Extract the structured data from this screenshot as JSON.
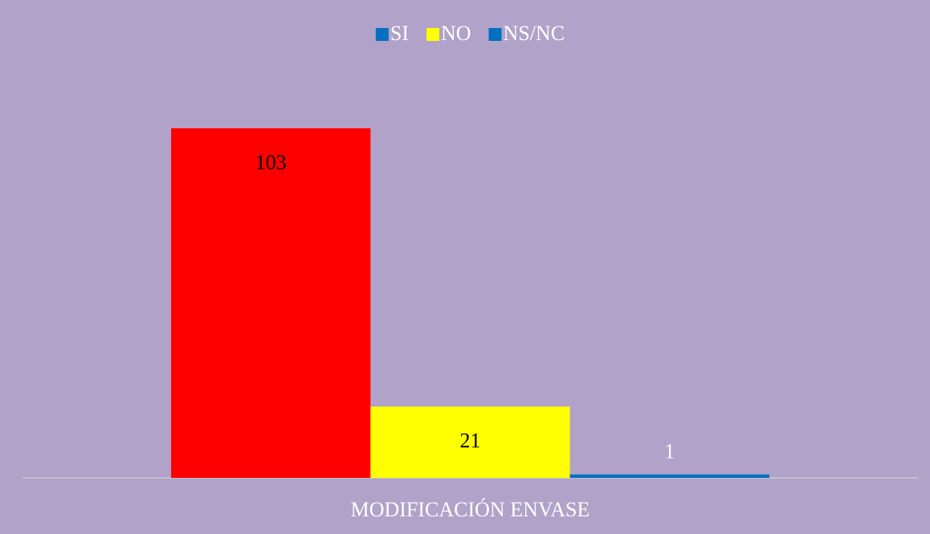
{
  "chart_data": {
    "type": "bar",
    "categories": [
      "MODIFICACIÓN ENVASE"
    ],
    "series": [
      {
        "name": "SI",
        "color": "#ff0000",
        "legend_color": "#0070c0",
        "values": [
          103
        ]
      },
      {
        "name": "NO",
        "color": "#ffff00",
        "legend_color": "#ffff00",
        "values": [
          21
        ]
      },
      {
        "name": "NS/NC",
        "color": "#0070c0",
        "legend_color": "#0070c0",
        "values": [
          1
        ]
      }
    ],
    "ylim": [
      0,
      120
    ],
    "legend": "top"
  }
}
